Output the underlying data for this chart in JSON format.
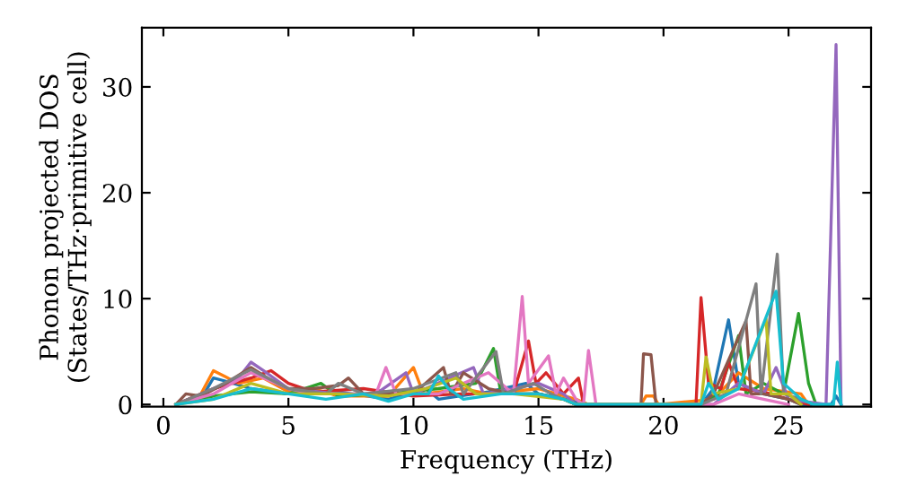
{
  "chart_data": {
    "type": "line",
    "xlabel": "Frequency (THz)",
    "ylabel": "Phonon projected DOS\n(States/THz·primitive cell)",
    "xlim": [
      -0.86,
      28.3
    ],
    "ylim": [
      -0.2,
      35.6
    ],
    "xticks": [
      0,
      5,
      10,
      15,
      20,
      25
    ],
    "yticks": [
      0,
      10,
      20,
      30
    ],
    "grid": false,
    "marker": "none",
    "line_style": "solid",
    "series": [
      {
        "color": "#1f77b4",
        "x": [
          0.5,
          1.5,
          2,
          2.5,
          3.5,
          5,
          7,
          9,
          10.5,
          11,
          13,
          14.5,
          15,
          16.5,
          17,
          21.5,
          22,
          22.6,
          23,
          24,
          25,
          25.5,
          26.7,
          26.9,
          27.1
        ],
        "values": [
          0,
          0.5,
          2.5,
          2.2,
          1.5,
          1,
          1.2,
          0.5,
          1.5,
          0.5,
          1.2,
          2,
          1,
          0.3,
          0,
          0,
          1.5,
          8,
          2,
          1,
          0.5,
          0,
          0,
          0.8,
          0
        ]
      },
      {
        "color": "#ff7f0e",
        "x": [
          0.5,
          1.5,
          2,
          2.5,
          3,
          4,
          5,
          6,
          7,
          9,
          10,
          10.4,
          12,
          13,
          15,
          16.5,
          17,
          19.1,
          19.3,
          19.6,
          19.8,
          22,
          23,
          24,
          25.5,
          25.8
        ],
        "values": [
          0,
          1,
          3.2,
          2.6,
          2,
          2.5,
          1.2,
          1.5,
          0.8,
          0.8,
          3.5,
          1,
          1.5,
          1,
          1.5,
          0.5,
          0,
          0,
          0.8,
          0.8,
          0,
          0.5,
          3,
          1.5,
          1,
          0
        ]
      },
      {
        "color": "#2ca02c",
        "x": [
          0.5,
          2,
          3.5,
          5,
          6.3,
          7,
          9,
          11,
          12.5,
          13.2,
          13.5,
          15,
          16,
          16.5,
          21.5,
          22.2,
          23,
          23.3,
          24,
          24.8,
          25.4,
          25.8,
          26.1
        ],
        "values": [
          0,
          0.8,
          1.2,
          1,
          2,
          0.8,
          1,
          1.5,
          2,
          5.3,
          1,
          1,
          0.5,
          0,
          0,
          1,
          6.5,
          1,
          2,
          1,
          8.6,
          2,
          0
        ]
      },
      {
        "color": "#d62728",
        "x": [
          0.5,
          2,
          3.5,
          4.3,
          5,
          6,
          8,
          10,
          12,
          14,
          14.6,
          14.9,
          15.3,
          16,
          16.6,
          16.8,
          21.3,
          21.5,
          21.8,
          22.3,
          22.6,
          23,
          24,
          25,
          25.8
        ],
        "values": [
          0,
          1.5,
          2.5,
          3.2,
          2,
          1.2,
          1.5,
          0.8,
          1,
          1,
          6,
          2,
          3,
          1,
          2.5,
          0,
          0,
          10.1,
          2,
          1.5,
          4,
          1.5,
          1.2,
          0.5,
          0
        ]
      },
      {
        "color": "#9467bd",
        "x": [
          0.5,
          2,
          3,
          3.5,
          4,
          5,
          7,
          8.5,
          9.7,
          10,
          12.4,
          12.8,
          14,
          15,
          16,
          16.5,
          22,
          23,
          24,
          24.5,
          25,
          26.5,
          26.9,
          27.1
        ],
        "values": [
          0,
          1.5,
          2.5,
          4,
          3.2,
          1.5,
          1,
          1,
          3,
          1,
          3.5,
          1,
          1.5,
          2,
          1,
          0,
          0,
          2,
          1,
          3.5,
          0.5,
          0,
          34,
          0
        ]
      },
      {
        "color": "#8c564b",
        "x": [
          0.5,
          0.9,
          1.5,
          2.5,
          3.5,
          4.5,
          5,
          6,
          7,
          7.4,
          8,
          10,
          11.2,
          11.5,
          12,
          13,
          14,
          15,
          16,
          16.5,
          19.1,
          19.2,
          19.5,
          19.7,
          21.5,
          22,
          23.3,
          23.5,
          24,
          25,
          25.5
        ],
        "values": [
          0,
          1,
          0.8,
          2,
          3.5,
          2,
          1.5,
          1.5,
          1.8,
          2.5,
          1,
          1,
          3.5,
          1,
          3,
          1.5,
          1,
          1,
          0.5,
          0,
          0,
          4.8,
          4.7,
          0,
          0,
          1,
          7.9,
          1,
          1,
          0.5,
          0
        ]
      },
      {
        "color": "#e377c2",
        "x": [
          0.5,
          2,
          3.5,
          5,
          6,
          7,
          8.5,
          8.9,
          9.3,
          11,
          12,
          13,
          14,
          14.35,
          14.6,
          15.4,
          15.7,
          16,
          16.5,
          16.8,
          17,
          17.3,
          22,
          23,
          24,
          25
        ],
        "values": [
          0,
          1,
          3,
          1.5,
          1,
          1,
          1,
          3.5,
          1,
          1,
          2,
          3,
          1,
          10.2,
          2,
          4.6,
          1,
          2.5,
          0.5,
          0,
          5.1,
          0,
          0,
          1,
          0.5,
          0
        ]
      },
      {
        "color": "#7f7f7f",
        "x": [
          0.5,
          2,
          3.5,
          5,
          6.5,
          7,
          8,
          10,
          11.7,
          12,
          13.3,
          13.6,
          14.8,
          15.5,
          16.5,
          21.5,
          22.5,
          23.7,
          23.9,
          24.55,
          24.8,
          25.5,
          26
        ],
        "values": [
          0,
          1.5,
          3.3,
          1.5,
          1,
          2,
          1,
          1.5,
          3,
          1,
          5,
          1,
          2,
          1,
          0,
          0,
          1,
          11.4,
          1,
          14.2,
          1,
          0.5,
          0
        ]
      },
      {
        "color": "#bcbd22",
        "x": [
          0.5,
          2,
          3.5,
          5,
          7,
          9,
          10.5,
          11.7,
          12.5,
          14,
          16,
          16.5,
          21.5,
          21.7,
          22,
          23,
          24.1,
          24.3,
          25,
          25.5
        ],
        "values": [
          0,
          0.5,
          2,
          1,
          1,
          0.8,
          1.5,
          2.5,
          1,
          1,
          0.5,
          0,
          0,
          4.5,
          1,
          1.5,
          8.1,
          1,
          1,
          0
        ]
      },
      {
        "color": "#17becf",
        "x": [
          0.5,
          2,
          3.5,
          5,
          6.5,
          8,
          9,
          10,
          10.6,
          11,
          11.4,
          12,
          13.5,
          15,
          16,
          16.5,
          21.5,
          21.8,
          22.2,
          23,
          24.5,
          24.8,
          25.5,
          26,
          26.8,
          26.95,
          27.1
        ],
        "values": [
          0,
          0.5,
          1.5,
          1,
          0.5,
          1,
          0.3,
          1,
          1,
          2.7,
          1.5,
          0.5,
          1,
          1,
          0.5,
          0,
          0,
          2,
          0.5,
          1.5,
          10.7,
          2,
          0.5,
          0,
          0,
          4,
          0
        ]
      }
    ]
  }
}
